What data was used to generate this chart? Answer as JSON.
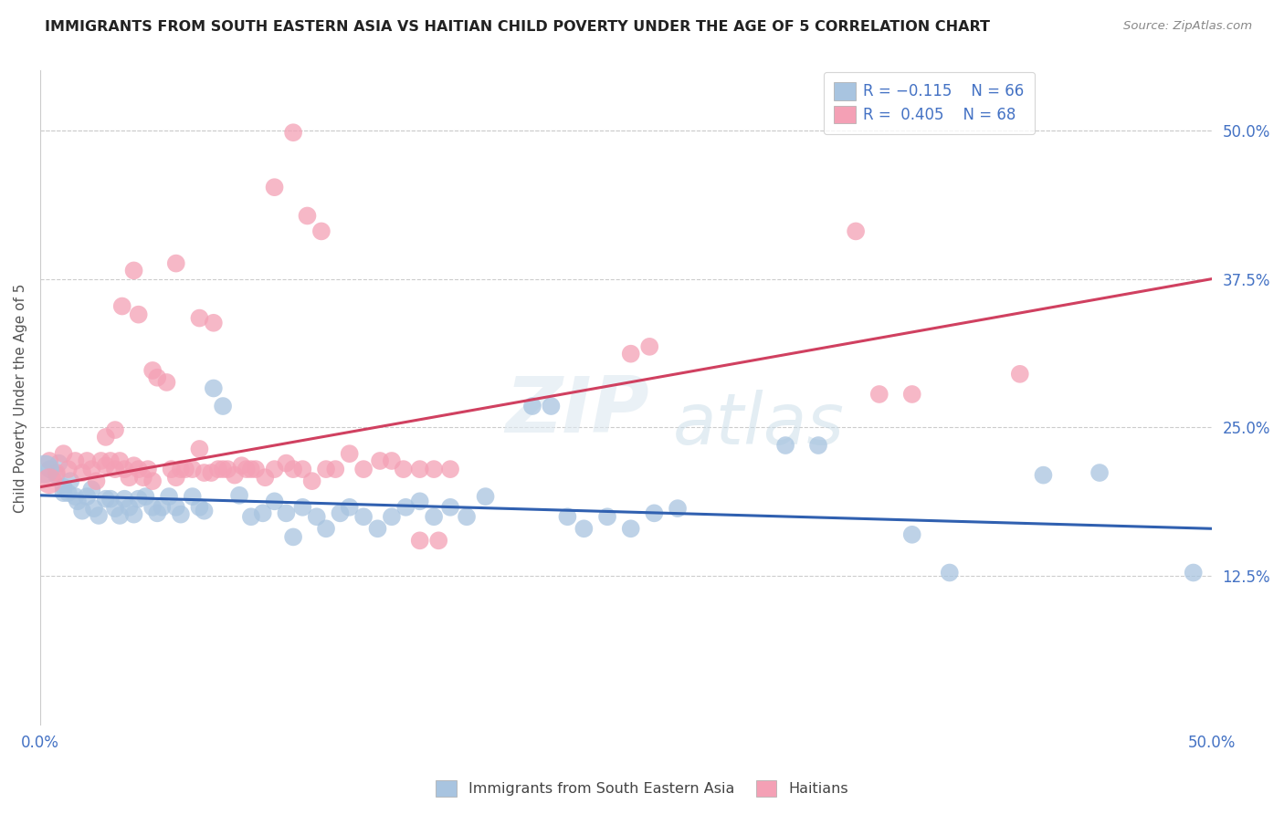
{
  "title": "IMMIGRANTS FROM SOUTH EASTERN ASIA VS HAITIAN CHILD POVERTY UNDER THE AGE OF 5 CORRELATION CHART",
  "source": "Source: ZipAtlas.com",
  "ylabel": "Child Poverty Under the Age of 5",
  "yticks": [
    "12.5%",
    "25.0%",
    "37.5%",
    "50.0%"
  ],
  "ytick_vals": [
    0.125,
    0.25,
    0.375,
    0.5
  ],
  "xlim": [
    0.0,
    0.5
  ],
  "ylim": [
    -0.02,
    0.56
  ],
  "plot_ylim": [
    0.0,
    0.55
  ],
  "legend_label_blue": "Immigrants from South Eastern Asia",
  "legend_label_pink": "Haitians",
  "color_blue": "#a8c4e0",
  "color_pink": "#f4a0b5",
  "line_color_blue": "#3060b0",
  "line_color_pink": "#d04060",
  "watermark": "ZIPatlas",
  "blue_scatter": [
    [
      0.004,
      0.215
    ],
    [
      0.007,
      0.21
    ],
    [
      0.008,
      0.22
    ],
    [
      0.01,
      0.2
    ],
    [
      0.01,
      0.195
    ],
    [
      0.012,
      0.195
    ],
    [
      0.013,
      0.205
    ],
    [
      0.015,
      0.192
    ],
    [
      0.016,
      0.188
    ],
    [
      0.018,
      0.18
    ],
    [
      0.02,
      0.192
    ],
    [
      0.022,
      0.198
    ],
    [
      0.023,
      0.182
    ],
    [
      0.025,
      0.176
    ],
    [
      0.028,
      0.19
    ],
    [
      0.03,
      0.19
    ],
    [
      0.032,
      0.182
    ],
    [
      0.034,
      0.176
    ],
    [
      0.036,
      0.19
    ],
    [
      0.038,
      0.183
    ],
    [
      0.04,
      0.177
    ],
    [
      0.042,
      0.19
    ],
    [
      0.045,
      0.192
    ],
    [
      0.048,
      0.183
    ],
    [
      0.05,
      0.178
    ],
    [
      0.052,
      0.183
    ],
    [
      0.055,
      0.192
    ],
    [
      0.058,
      0.183
    ],
    [
      0.06,
      0.177
    ],
    [
      0.065,
      0.192
    ],
    [
      0.068,
      0.183
    ],
    [
      0.07,
      0.18
    ],
    [
      0.074,
      0.283
    ],
    [
      0.078,
      0.268
    ],
    [
      0.085,
      0.193
    ],
    [
      0.09,
      0.175
    ],
    [
      0.095,
      0.178
    ],
    [
      0.1,
      0.188
    ],
    [
      0.105,
      0.178
    ],
    [
      0.108,
      0.158
    ],
    [
      0.112,
      0.183
    ],
    [
      0.118,
      0.175
    ],
    [
      0.122,
      0.165
    ],
    [
      0.128,
      0.178
    ],
    [
      0.132,
      0.183
    ],
    [
      0.138,
      0.175
    ],
    [
      0.144,
      0.165
    ],
    [
      0.15,
      0.175
    ],
    [
      0.156,
      0.183
    ],
    [
      0.162,
      0.188
    ],
    [
      0.168,
      0.175
    ],
    [
      0.175,
      0.183
    ],
    [
      0.182,
      0.175
    ],
    [
      0.19,
      0.192
    ],
    [
      0.21,
      0.268
    ],
    [
      0.218,
      0.268
    ],
    [
      0.225,
      0.175
    ],
    [
      0.232,
      0.165
    ],
    [
      0.242,
      0.175
    ],
    [
      0.252,
      0.165
    ],
    [
      0.262,
      0.178
    ],
    [
      0.272,
      0.182
    ],
    [
      0.318,
      0.235
    ],
    [
      0.332,
      0.235
    ],
    [
      0.372,
      0.16
    ],
    [
      0.388,
      0.128
    ],
    [
      0.428,
      0.21
    ],
    [
      0.452,
      0.212
    ],
    [
      0.492,
      0.128
    ]
  ],
  "pink_scatter": [
    [
      0.004,
      0.222
    ],
    [
      0.007,
      0.212
    ],
    [
      0.01,
      0.228
    ],
    [
      0.012,
      0.215
    ],
    [
      0.015,
      0.222
    ],
    [
      0.018,
      0.212
    ],
    [
      0.02,
      0.222
    ],
    [
      0.022,
      0.215
    ],
    [
      0.024,
      0.205
    ],
    [
      0.026,
      0.222
    ],
    [
      0.028,
      0.218
    ],
    [
      0.03,
      0.222
    ],
    [
      0.032,
      0.215
    ],
    [
      0.034,
      0.222
    ],
    [
      0.036,
      0.215
    ],
    [
      0.038,
      0.208
    ],
    [
      0.04,
      0.218
    ],
    [
      0.042,
      0.215
    ],
    [
      0.044,
      0.208
    ],
    [
      0.046,
      0.215
    ],
    [
      0.048,
      0.205
    ],
    [
      0.05,
      0.292
    ],
    [
      0.054,
      0.288
    ],
    [
      0.056,
      0.215
    ],
    [
      0.058,
      0.208
    ],
    [
      0.06,
      0.215
    ],
    [
      0.062,
      0.215
    ],
    [
      0.065,
      0.215
    ],
    [
      0.068,
      0.232
    ],
    [
      0.07,
      0.212
    ],
    [
      0.073,
      0.212
    ],
    [
      0.076,
      0.215
    ],
    [
      0.078,
      0.215
    ],
    [
      0.08,
      0.215
    ],
    [
      0.083,
      0.21
    ],
    [
      0.086,
      0.218
    ],
    [
      0.088,
      0.215
    ],
    [
      0.09,
      0.215
    ],
    [
      0.092,
      0.215
    ],
    [
      0.096,
      0.208
    ],
    [
      0.1,
      0.215
    ],
    [
      0.105,
      0.22
    ],
    [
      0.108,
      0.215
    ],
    [
      0.112,
      0.215
    ],
    [
      0.116,
      0.205
    ],
    [
      0.122,
      0.215
    ],
    [
      0.126,
      0.215
    ],
    [
      0.132,
      0.228
    ],
    [
      0.138,
      0.215
    ],
    [
      0.145,
      0.222
    ],
    [
      0.15,
      0.222
    ],
    [
      0.155,
      0.215
    ],
    [
      0.162,
      0.215
    ],
    [
      0.168,
      0.215
    ],
    [
      0.175,
      0.215
    ],
    [
      0.04,
      0.382
    ],
    [
      0.058,
      0.388
    ],
    [
      0.068,
      0.342
    ],
    [
      0.074,
      0.338
    ],
    [
      0.035,
      0.352
    ],
    [
      0.042,
      0.345
    ],
    [
      0.048,
      0.298
    ],
    [
      0.028,
      0.242
    ],
    [
      0.032,
      0.248
    ],
    [
      0.1,
      0.452
    ],
    [
      0.108,
      0.498
    ],
    [
      0.114,
      0.428
    ],
    [
      0.12,
      0.415
    ],
    [
      0.252,
      0.312
    ],
    [
      0.26,
      0.318
    ],
    [
      0.348,
      0.415
    ],
    [
      0.358,
      0.278
    ],
    [
      0.372,
      0.278
    ],
    [
      0.162,
      0.155
    ],
    [
      0.17,
      0.155
    ],
    [
      0.418,
      0.295
    ]
  ],
  "blue_line_x": [
    0.0,
    0.5
  ],
  "blue_line_y": [
    0.193,
    0.165
  ],
  "pink_line_x": [
    0.0,
    0.5
  ],
  "pink_line_y": [
    0.2,
    0.375
  ]
}
